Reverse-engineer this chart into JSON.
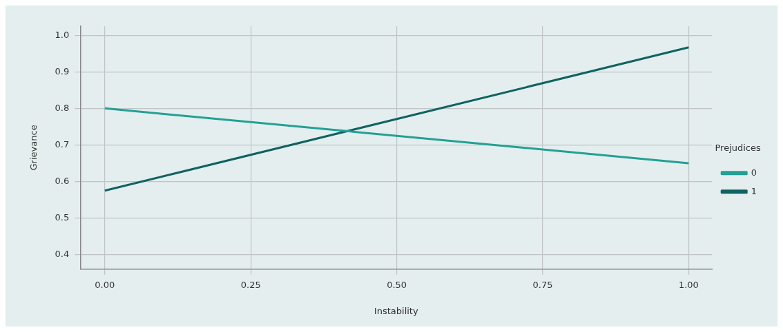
{
  "chart_data": {
    "type": "line",
    "xlabel": "Instability",
    "ylabel": "Grievance",
    "legend_title": "Prejudices",
    "x": [
      0,
      1
    ],
    "series": [
      {
        "name": "0",
        "color": "#22a095",
        "values": [
          0.8,
          0.65
        ]
      },
      {
        "name": "1",
        "color": "#0f6262",
        "values": [
          0.575,
          0.967
        ]
      }
    ],
    "xlim": [
      -0.042,
      1.04
    ],
    "xticks": [
      {
        "value": 0,
        "label": "0.00"
      },
      {
        "value": 0.25,
        "label": "0.25"
      },
      {
        "value": 0.5,
        "label": "0.50"
      },
      {
        "value": 0.75,
        "label": "0.75"
      },
      {
        "value": 1,
        "label": "1.00"
      }
    ],
    "ylim": [
      0.36,
      1.025
    ],
    "yticks": [
      {
        "value": 0.4,
        "label": "0.4"
      },
      {
        "value": 0.5,
        "label": "0.5"
      },
      {
        "value": 0.6,
        "label": "0.6"
      },
      {
        "value": 0.7,
        "label": "0.7"
      },
      {
        "value": 0.8,
        "label": "0.8"
      },
      {
        "value": 0.9,
        "label": "0.9"
      },
      {
        "value": 1,
        "label": "1.0"
      }
    ],
    "grid": true,
    "legend": "right",
    "marker": "none",
    "line_style": "solid"
  }
}
